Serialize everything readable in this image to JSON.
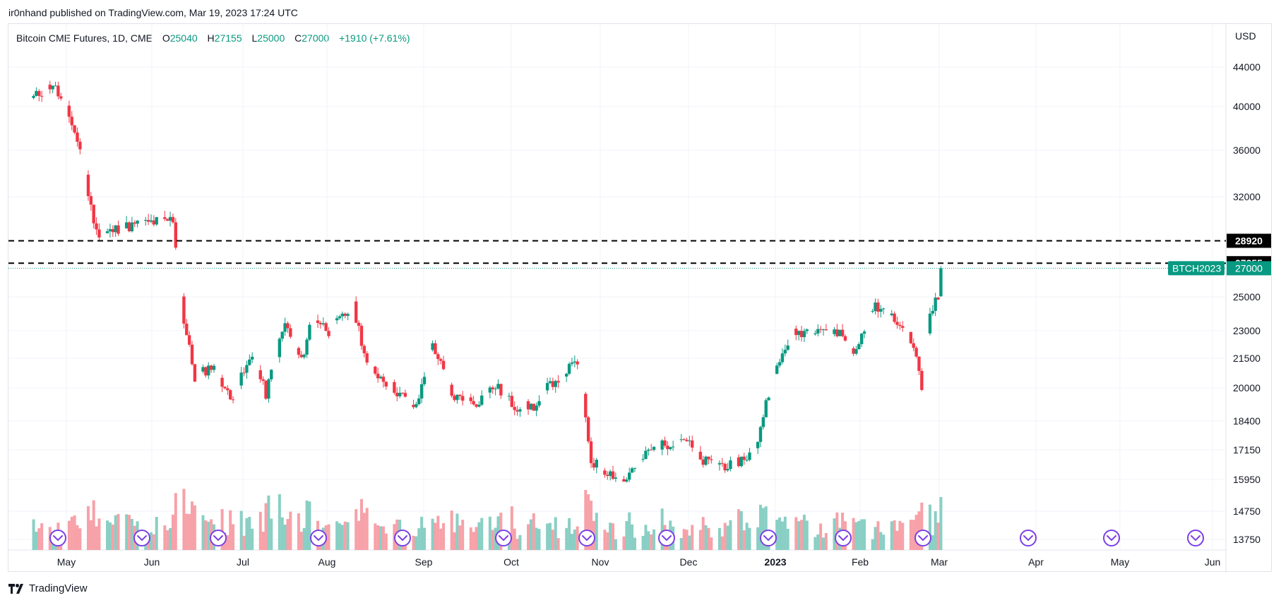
{
  "header": {
    "published": "ir0nhand published on TradingView.com, Mar 19, 2023 17:24 UTC"
  },
  "footer": {
    "brand": "TradingView"
  },
  "legend": {
    "symbol": "Bitcoin CME Futures, 1D, CME",
    "o_label": "O",
    "o": "25040",
    "h_label": "H",
    "h": "27155",
    "l_label": "L",
    "l": "25000",
    "c_label": "C",
    "c": "27000",
    "change": "+1910 (+7.61%)"
  },
  "colors": {
    "up": "#089981",
    "down": "#f23645",
    "up_vol": "#89cfc4",
    "down_vol": "#f7a1a8",
    "grid": "#f0f3fa",
    "event": "#7b3fe4"
  },
  "chart_data": {
    "type": "candlestick",
    "title": "Bitcoin CME Futures, 1D, CME",
    "currency": "USD",
    "y_ticks": [
      44000,
      40000,
      36000,
      32000,
      25000,
      23000,
      21500,
      20000,
      18400,
      17150,
      15950,
      14750,
      13750
    ],
    "y_tick_labels": [
      "44000",
      "40000",
      "36000",
      "32000",
      "25000",
      "23000",
      "21500",
      "20000",
      "18400",
      "17150",
      "15950",
      "14750",
      "13750"
    ],
    "x_labels": [
      "May",
      "Jun",
      "Jul",
      "Aug",
      "Sep",
      "Oct",
      "Nov",
      "Dec",
      "2023",
      "Feb",
      "Mar",
      "Apr",
      "May",
      "Jun"
    ],
    "price_lines": [
      {
        "value": 28920,
        "label": "28920",
        "style": "dashed"
      },
      {
        "value": 27355,
        "label": "27355",
        "style": "dashed"
      }
    ],
    "last_price": {
      "symbol": "BTCH2023",
      "value": 27000,
      "label": "27000"
    },
    "event_markers": 14,
    "ohlc_anchors": [
      [
        "2022-04-19",
        40900
      ],
      [
        "2022-04-26",
        42300
      ],
      [
        "2022-05-03",
        38500
      ],
      [
        "2022-05-06",
        36000
      ],
      [
        "2022-05-10",
        31200
      ],
      [
        "2022-05-13",
        29200
      ],
      [
        "2022-05-20",
        29800
      ],
      [
        "2022-06-01",
        30200
      ],
      [
        "2022-06-09",
        30400
      ],
      [
        "2022-06-13",
        23500
      ],
      [
        "2022-06-17",
        20500
      ],
      [
        "2022-06-24",
        21200
      ],
      [
        "2022-06-30",
        19400
      ],
      [
        "2022-07-08",
        21600
      ],
      [
        "2022-07-13",
        19700
      ],
      [
        "2022-07-20",
        23400
      ],
      [
        "2022-07-26",
        21300
      ],
      [
        "2022-07-30",
        23900
      ],
      [
        "2022-08-05",
        23000
      ],
      [
        "2022-08-14",
        24400
      ],
      [
        "2022-08-19",
        21200
      ],
      [
        "2022-08-26",
        20300
      ],
      [
        "2022-09-06",
        19000
      ],
      [
        "2022-09-12",
        22300
      ],
      [
        "2022-09-19",
        19600
      ],
      [
        "2022-09-28",
        19300
      ],
      [
        "2022-10-05",
        20100
      ],
      [
        "2022-10-12",
        19100
      ],
      [
        "2022-10-20",
        19100
      ],
      [
        "2022-10-25",
        20200
      ],
      [
        "2022-11-04",
        21300
      ],
      [
        "2022-11-09",
        16700
      ],
      [
        "2022-11-13",
        16400
      ],
      [
        "2022-11-21",
        15900
      ],
      [
        "2022-11-30",
        17100
      ],
      [
        "2022-12-13",
        17700
      ],
      [
        "2022-12-19",
        16700
      ],
      [
        "2022-12-30",
        16500
      ],
      [
        "2023-01-08",
        17100
      ],
      [
        "2023-01-13",
        19800
      ],
      [
        "2023-01-21",
        22800
      ],
      [
        "2023-01-31",
        23200
      ],
      [
        "2023-02-08",
        22900
      ],
      [
        "2023-02-14",
        21800
      ],
      [
        "2023-02-20",
        24500
      ],
      [
        "2023-03-01",
        23500
      ],
      [
        "2023-03-07",
        22200
      ],
      [
        "2023-03-10",
        19900
      ],
      [
        "2023-03-13",
        24300
      ],
      [
        "2023-03-16",
        24900
      ],
      [
        "2023-03-17",
        27000
      ]
    ]
  }
}
